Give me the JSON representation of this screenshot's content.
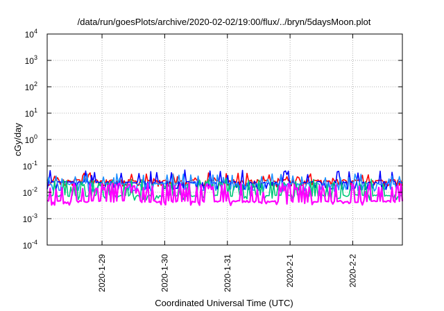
{
  "chart_data": {
    "type": "line",
    "title": "/data/run/goesPlots/archive/2020-02-02/19:00/flux/../bryn/5daysMoon.plot",
    "xlabel": "Coordinated Universal Time (UTC)",
    "ylabel": "cGy/day",
    "yscale": "log",
    "ylim": [
      0.0001,
      10000
    ],
    "xlim": [
      "2020-01-28T03:00",
      "2020-02-02T19:00"
    ],
    "grid": true,
    "y_ticks": [
      {
        "base": "10",
        "exp": "-4",
        "value": 0.0001
      },
      {
        "base": "10",
        "exp": "-3",
        "value": 0.001
      },
      {
        "base": "10",
        "exp": "-2",
        "value": 0.01
      },
      {
        "base": "10",
        "exp": "-1",
        "value": 0.1
      },
      {
        "base": "10",
        "exp": "0",
        "value": 1
      },
      {
        "base": "10",
        "exp": "1",
        "value": 10
      },
      {
        "base": "10",
        "exp": "2",
        "value": 100
      },
      {
        "base": "10",
        "exp": "3",
        "value": 1000
      },
      {
        "base": "10",
        "exp": "4",
        "value": 10000
      }
    ],
    "x_ticks": [
      {
        "label": "2020-1-29",
        "value": "2020-01-29T00:00"
      },
      {
        "label": "2020-1-30",
        "value": "2020-01-30T00:00"
      },
      {
        "label": "2020-1-31",
        "value": "2020-01-31T00:00"
      },
      {
        "label": "2020-2-1",
        "value": "2020-02-01T00:00"
      },
      {
        "label": "2020-2-2",
        "value": "2020-02-02T00:00"
      }
    ],
    "series": [
      {
        "color": "#ff0000",
        "baseline": 0.028,
        "spike": 0.055,
        "min": 0.018
      },
      {
        "color": "#0000ff",
        "baseline": 0.024,
        "spike": 0.07,
        "min": 0.014
      },
      {
        "color": "#1e90ff",
        "baseline": 0.021,
        "spike": 0.05,
        "min": 0.012
      },
      {
        "color": "#00c878",
        "baseline": 0.0075,
        "spike": 0.025,
        "min": 0.0055
      },
      {
        "color": "#ff00ff",
        "baseline": 0.0045,
        "spike": 0.022,
        "min": 0.0035
      }
    ]
  }
}
